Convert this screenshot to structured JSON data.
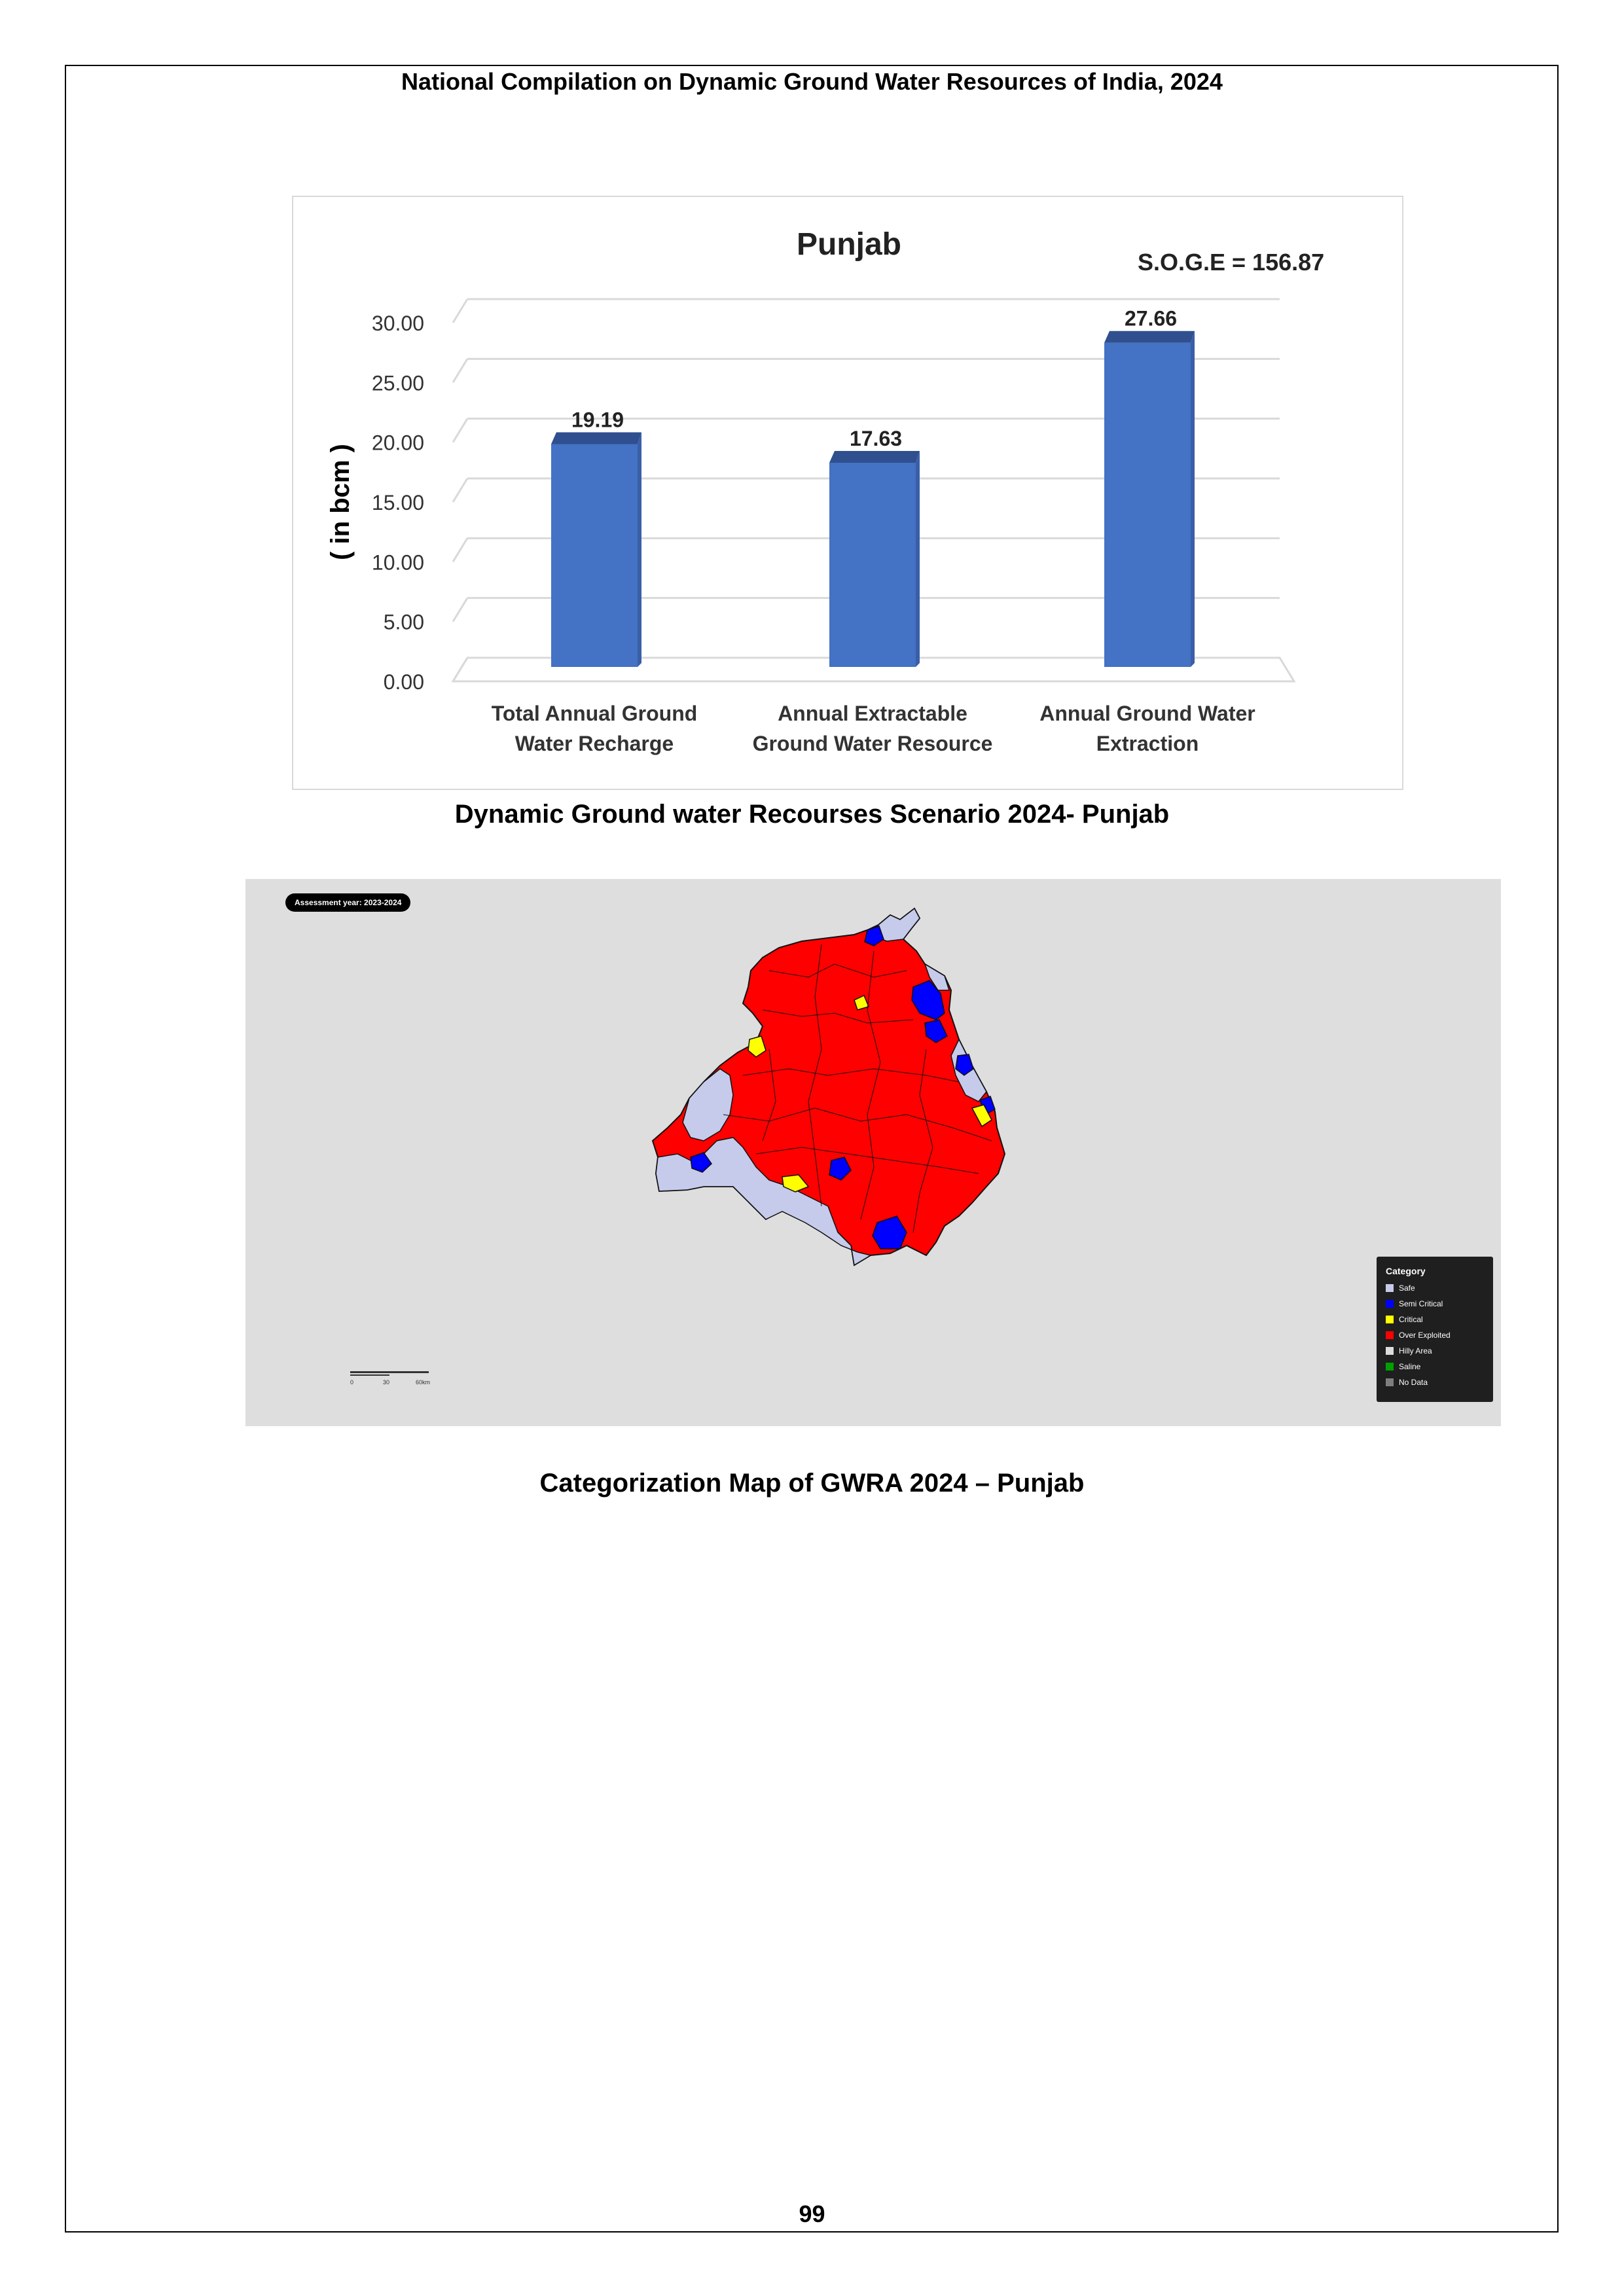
{
  "header": {
    "title": "National Compilation on Dynamic Ground Water Resources of India, 2024"
  },
  "chart_data": {
    "type": "bar",
    "title": "Punjab",
    "annotation": "S.O.G.E = 156.87",
    "ylabel": "( in bcm )",
    "xlabel": "",
    "ylim": [
      0,
      30
    ],
    "yticks": [
      "0.00",
      "5.00",
      "10.00",
      "15.00",
      "20.00",
      "25.00",
      "30.00"
    ],
    "categories": [
      [
        "Total Annual  Ground",
        "Water Recharge"
      ],
      [
        "Annual Extractable",
        "Ground Water Resource"
      ],
      [
        "Annual Ground Water",
        "Extraction"
      ]
    ],
    "values": [
      19.19,
      17.63,
      27.66
    ],
    "value_labels": [
      "19.19",
      "17.63",
      "27.66"
    ],
    "bar_color": "#4472c4",
    "bar_top_color": "#2f4f8f",
    "grid": true,
    "legend": "none"
  },
  "chart_caption": "Dynamic Ground water Recourses Scenario 2024- Punjab",
  "map": {
    "assessment_label": "Assessment year: 2023-2024",
    "scale_ticks": [
      "0",
      "30",
      "60km"
    ],
    "legend_title": "Category",
    "legend_items": [
      {
        "label": "Safe",
        "color": "#c6cbeb"
      },
      {
        "label": "Semi Critical",
        "color": "#0000ff"
      },
      {
        "label": "Critical",
        "color": "#ffff00"
      },
      {
        "label": "Over Exploited",
        "color": "#ff0000"
      },
      {
        "label": "Hilly Area",
        "color": "#dcdcdc"
      },
      {
        "label": "Saline",
        "color": "#00a000"
      },
      {
        "label": "No Data",
        "color": "#7f7f7f"
      }
    ]
  },
  "map_caption": "Categorization Map of GWRA 2024 – Punjab",
  "page_number": "99"
}
